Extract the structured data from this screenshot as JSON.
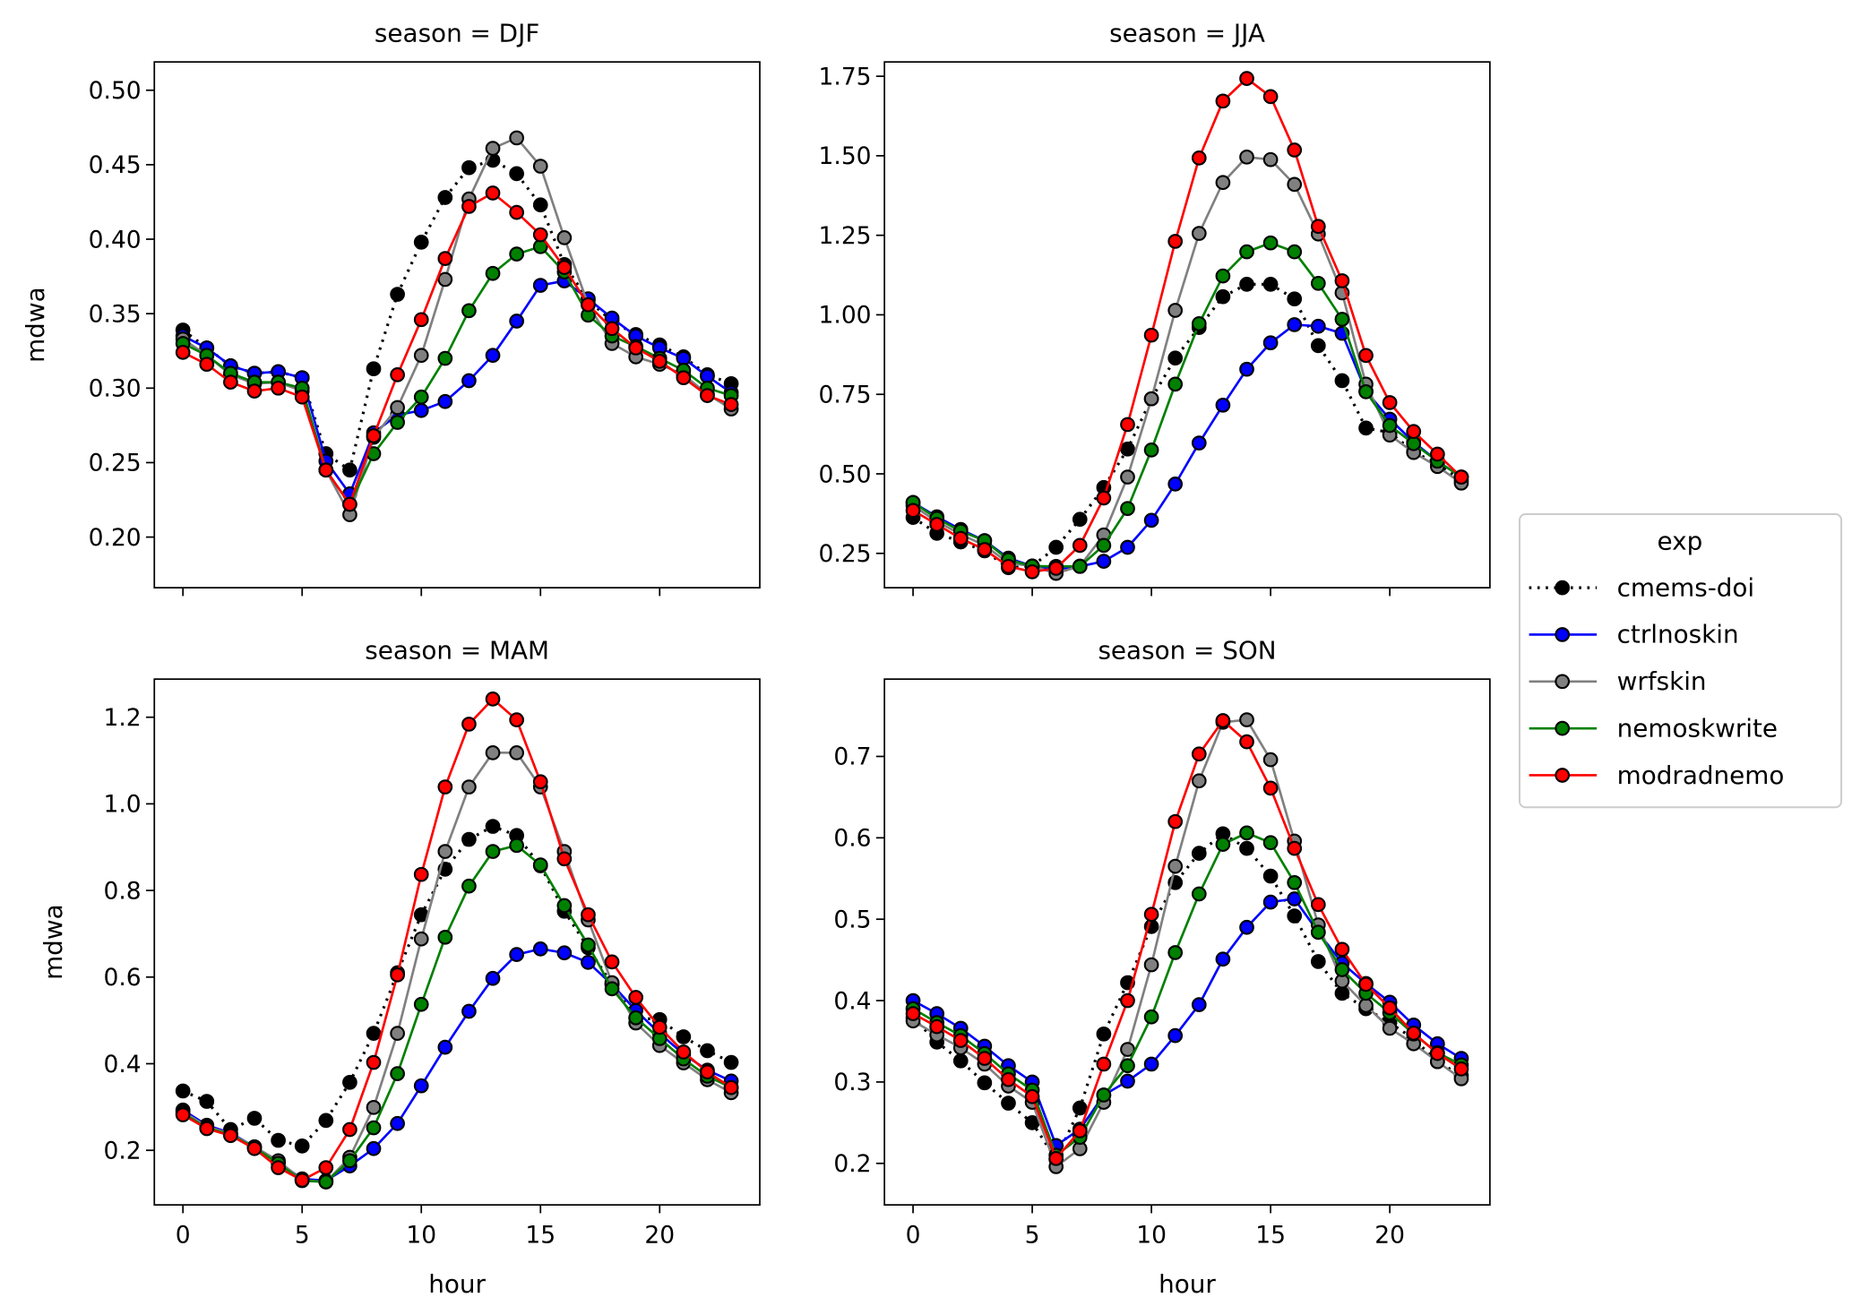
{
  "chart_data": {
    "type": "line",
    "x_label": "hour",
    "y_label": "mdwa",
    "x": [
      0,
      1,
      2,
      3,
      4,
      5,
      6,
      7,
      8,
      9,
      10,
      11,
      12,
      13,
      14,
      15,
      16,
      17,
      18,
      19,
      20,
      21,
      22,
      23
    ],
    "x_ticks": [
      0,
      5,
      10,
      15,
      20
    ],
    "xlim": [
      -1.2,
      24.2
    ],
    "legend": {
      "title": "exp",
      "placement": "right"
    },
    "series_styles": [
      {
        "name": "cmems-doi",
        "color": "#000000",
        "line": "dotted"
      },
      {
        "name": "ctrlnoskin",
        "color": "#0000ff",
        "line": "solid"
      },
      {
        "name": "wrfskin",
        "color": "#808080",
        "line": "solid"
      },
      {
        "name": "nemoskwrite",
        "color": "#008000",
        "line": "solid"
      },
      {
        "name": "modradnemo",
        "color": "#ff0000",
        "line": "solid"
      }
    ],
    "panels": [
      {
        "title": "season = DJF",
        "ylim": [
          0.166,
          0.519
        ],
        "y_ticks": [
          "0.20",
          "0.25",
          "0.30",
          "0.35",
          "0.40",
          "0.45",
          "0.50"
        ],
        "series": [
          {
            "name": "cmems-doi",
            "values": [
              0.339,
              0.327,
              0.315,
              0.31,
              0.311,
              0.307,
              0.256,
              0.245,
              0.313,
              0.363,
              0.398,
              0.428,
              0.448,
              0.453,
              0.444,
              0.423,
              0.383,
              0.359,
              0.345,
              0.336,
              0.329,
              0.321,
              0.309,
              0.303
            ]
          },
          {
            "name": "ctrlnoskin",
            "values": [
              0.335,
              0.327,
              0.315,
              0.31,
              0.311,
              0.307,
              0.251,
              0.229,
              0.27,
              0.282,
              0.285,
              0.291,
              0.305,
              0.322,
              0.345,
              0.369,
              0.372,
              0.36,
              0.347,
              0.335,
              0.327,
              0.32,
              0.308,
              0.297
            ]
          },
          {
            "name": "wrfskin",
            "values": [
              0.333,
              0.322,
              0.309,
              0.303,
              0.304,
              0.298,
              0.245,
              0.215,
              0.267,
              0.287,
              0.322,
              0.373,
              0.427,
              0.461,
              0.468,
              0.449,
              0.401,
              0.356,
              0.33,
              0.321,
              0.316,
              0.309,
              0.296,
              0.286
            ]
          },
          {
            "name": "nemoskwrite",
            "values": [
              0.33,
              0.322,
              0.31,
              0.304,
              0.304,
              0.3,
              0.245,
              0.222,
              0.256,
              0.277,
              0.294,
              0.32,
              0.352,
              0.377,
              0.39,
              0.395,
              0.378,
              0.349,
              0.335,
              0.328,
              0.32,
              0.312,
              0.3,
              0.295
            ]
          },
          {
            "name": "modradnemo",
            "values": [
              0.324,
              0.316,
              0.304,
              0.298,
              0.3,
              0.294,
              0.245,
              0.222,
              0.268,
              0.309,
              0.346,
              0.387,
              0.422,
              0.431,
              0.418,
              0.403,
              0.381,
              0.356,
              0.34,
              0.327,
              0.318,
              0.307,
              0.295,
              0.289
            ]
          }
        ]
      },
      {
        "title": "season = JJA",
        "ylim": [
          0.142,
          1.795
        ],
        "y_ticks": [
          "0.25",
          "0.50",
          "0.75",
          "1.00",
          "1.25",
          "1.50",
          "1.75"
        ],
        "series": [
          {
            "name": "cmems-doi",
            "values": [
              0.363,
              0.313,
              0.286,
              0.258,
              0.205,
              0.21,
              0.269,
              0.357,
              0.457,
              0.578,
              0.736,
              0.864,
              0.96,
              1.057,
              1.096,
              1.096,
              1.05,
              0.903,
              0.793,
              0.644,
              0.63,
              0.57,
              0.53,
              0.48
            ]
          },
          {
            "name": "ctrlnoskin",
            "values": [
              0.41,
              0.365,
              0.325,
              0.29,
              0.235,
              0.21,
              0.2,
              0.209,
              0.225,
              0.269,
              0.354,
              0.468,
              0.597,
              0.716,
              0.829,
              0.912,
              0.969,
              0.964,
              0.942,
              0.76,
              0.672,
              0.6,
              0.54,
              0.49
            ]
          },
          {
            "name": "wrfskin",
            "values": [
              0.4,
              0.35,
              0.31,
              0.275,
              0.22,
              0.21,
              0.187,
              0.21,
              0.308,
              0.49,
              0.736,
              1.014,
              1.256,
              1.416,
              1.496,
              1.488,
              1.41,
              1.254,
              1.069,
              0.782,
              0.622,
              0.567,
              0.523,
              0.471
            ]
          },
          {
            "name": "nemoskwrite",
            "values": [
              0.41,
              0.36,
              0.32,
              0.29,
              0.23,
              0.21,
              0.209,
              0.209,
              0.275,
              0.391,
              0.575,
              0.782,
              0.972,
              1.122,
              1.198,
              1.226,
              1.198,
              1.099,
              0.986,
              0.758,
              0.652,
              0.595,
              0.54,
              0.49
            ]
          },
          {
            "name": "modradnemo",
            "values": [
              0.385,
              0.341,
              0.297,
              0.262,
              0.209,
              0.192,
              0.203,
              0.275,
              0.424,
              0.655,
              0.936,
              1.231,
              1.493,
              1.672,
              1.743,
              1.686,
              1.518,
              1.278,
              1.107,
              0.872,
              0.724,
              0.633,
              0.562,
              0.49
            ]
          }
        ]
      },
      {
        "title": "season = MAM",
        "ylim": [
          0.074,
          1.288
        ],
        "y_ticks": [
          "0.2",
          "0.4",
          "0.6",
          "0.8",
          "1.0",
          "1.2"
        ],
        "series": [
          {
            "name": "cmems-doi",
            "values": [
              0.337,
              0.313,
              0.248,
              0.274,
              0.223,
              0.21,
              0.269,
              0.357,
              0.47,
              0.61,
              0.744,
              0.849,
              0.918,
              0.948,
              0.927,
              0.857,
              0.752,
              0.668,
              0.583,
              0.506,
              0.502,
              0.462,
              0.43,
              0.403
            ]
          },
          {
            "name": "ctrlnoskin",
            "values": [
              0.293,
              0.258,
              0.24,
              0.208,
              0.172,
              0.134,
              0.13,
              0.164,
              0.204,
              0.262,
              0.349,
              0.438,
              0.521,
              0.597,
              0.652,
              0.665,
              0.656,
              0.634,
              0.583,
              0.523,
              0.47,
              0.422,
              0.385,
              0.36
            ]
          },
          {
            "name": "wrfskin",
            "values": [
              0.289,
              0.255,
              0.238,
              0.208,
              0.176,
              0.131,
              0.127,
              0.184,
              0.299,
              0.47,
              0.688,
              0.89,
              1.039,
              1.118,
              1.118,
              1.039,
              0.89,
              0.732,
              0.587,
              0.494,
              0.442,
              0.402,
              0.363,
              0.333
            ]
          },
          {
            "name": "nemoskwrite",
            "values": [
              0.285,
              0.252,
              0.236,
              0.206,
              0.17,
              0.13,
              0.127,
              0.176,
              0.252,
              0.377,
              0.537,
              0.692,
              0.81,
              0.89,
              0.904,
              0.859,
              0.765,
              0.674,
              0.573,
              0.506,
              0.458,
              0.411,
              0.371,
              0.345
            ]
          },
          {
            "name": "modradnemo",
            "values": [
              0.282,
              0.25,
              0.234,
              0.204,
              0.16,
              0.131,
              0.16,
              0.248,
              0.403,
              0.605,
              0.837,
              1.039,
              1.184,
              1.242,
              1.194,
              1.051,
              0.873,
              0.744,
              0.635,
              0.553,
              0.484,
              0.427,
              0.381,
              0.345
            ]
          }
        ]
      },
      {
        "title": "season = SON",
        "ylim": [
          0.149,
          0.795
        ],
        "y_ticks": [
          "0.2",
          "0.3",
          "0.4",
          "0.5",
          "0.6",
          "0.7"
        ],
        "series": [
          {
            "name": "cmems-doi",
            "values": [
              0.379,
              0.349,
              0.326,
              0.299,
              0.274,
              0.25,
              0.205,
              0.268,
              0.359,
              0.422,
              0.491,
              0.545,
              0.581,
              0.605,
              0.587,
              0.553,
              0.504,
              0.448,
              0.409,
              0.39,
              0.373,
              0.353,
              0.325,
              0.308
            ]
          },
          {
            "name": "ctrlnoskin",
            "values": [
              0.4,
              0.384,
              0.366,
              0.344,
              0.32,
              0.3,
              0.222,
              0.242,
              0.284,
              0.301,
              0.322,
              0.357,
              0.395,
              0.451,
              0.49,
              0.521,
              0.525,
              0.484,
              0.446,
              0.421,
              0.398,
              0.37,
              0.347,
              0.329
            ]
          },
          {
            "name": "wrfskin",
            "values": [
              0.375,
              0.358,
              0.342,
              0.322,
              0.295,
              0.275,
              0.196,
              0.218,
              0.275,
              0.34,
              0.444,
              0.565,
              0.67,
              0.742,
              0.745,
              0.696,
              0.596,
              0.493,
              0.424,
              0.394,
              0.366,
              0.347,
              0.325,
              0.304
            ]
          },
          {
            "name": "nemoskwrite",
            "values": [
              0.39,
              0.373,
              0.357,
              0.335,
              0.31,
              0.29,
              0.21,
              0.232,
              0.284,
              0.32,
              0.38,
              0.459,
              0.531,
              0.592,
              0.606,
              0.594,
              0.545,
              0.484,
              0.438,
              0.409,
              0.385,
              0.359,
              0.336,
              0.321
            ]
          },
          {
            "name": "modradnemo",
            "values": [
              0.384,
              0.368,
              0.351,
              0.329,
              0.303,
              0.282,
              0.206,
              0.24,
              0.322,
              0.4,
              0.506,
              0.62,
              0.703,
              0.744,
              0.718,
              0.661,
              0.587,
              0.518,
              0.463,
              0.42,
              0.391,
              0.36,
              0.335,
              0.316
            ]
          }
        ]
      }
    ]
  }
}
